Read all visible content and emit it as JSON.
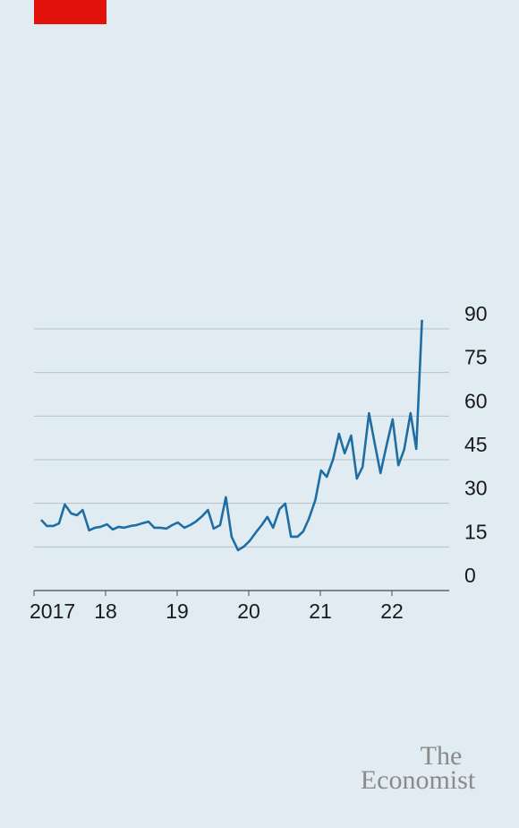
{
  "chart_data": {
    "type": "line",
    "x": [
      2017.1,
      2017.18,
      2017.27,
      2017.35,
      2017.43,
      2017.52,
      2017.6,
      2017.68,
      2017.77,
      2017.85,
      2017.93,
      2018.02,
      2018.1,
      2018.18,
      2018.26,
      2018.35,
      2018.43,
      2018.51,
      2018.6,
      2018.68,
      2018.76,
      2018.85,
      2018.93,
      2019.01,
      2019.1,
      2019.18,
      2019.26,
      2019.35,
      2019.43,
      2019.51,
      2019.6,
      2019.68,
      2019.76,
      2019.85,
      2019.93,
      2020.01,
      2020.1,
      2020.18,
      2020.26,
      2020.34,
      2020.43,
      2020.51,
      2020.59,
      2020.68,
      2020.76,
      2020.84,
      2020.93,
      2021.01,
      2021.09,
      2021.18,
      2021.26,
      2021.34,
      2021.43,
      2021.51,
      2021.59,
      2021.68,
      2021.76,
      2021.84,
      2021.93,
      2022.01,
      2022.09,
      2022.17,
      2022.26,
      2022.34,
      2022.42
    ],
    "series": [
      {
        "color": "#1f6ea3",
        "values": [
          24.3,
          22.2,
          22.2,
          23.1,
          29.6,
          26.5,
          25.9,
          27.7,
          20.7,
          21.6,
          21.9,
          22.8,
          21.0,
          21.9,
          21.6,
          22.2,
          22.5,
          23.1,
          23.7,
          21.6,
          21.6,
          21.3,
          22.5,
          23.4,
          21.6,
          22.5,
          23.7,
          25.6,
          27.7,
          21.3,
          22.5,
          32.1,
          18.5,
          13.9,
          15.1,
          17.0,
          20.0,
          22.5,
          25.3,
          21.6,
          28.0,
          29.9,
          18.5,
          18.5,
          20.3,
          24.7,
          31.1,
          41.3,
          39.1,
          45.3,
          53.9,
          47.2,
          53.3,
          38.5,
          42.5,
          61.0,
          50.5,
          40.4,
          50.5,
          58.9,
          43.1,
          48.4,
          61.0,
          48.7,
          93.1
        ]
      }
    ],
    "xlim": [
      2017,
      2022.8
    ],
    "xticks": [
      2017,
      {
        "value": 2018,
        "label": "18"
      },
      {
        "value": 2019,
        "label": "19"
      },
      {
        "value": 2020,
        "label": "20"
      },
      {
        "value": 2021,
        "label": "21"
      },
      {
        "value": 2022,
        "label": "22"
      }
    ],
    "ylim": [
      0,
      90
    ],
    "yticks": [
      0,
      15,
      30,
      45,
      60,
      75,
      90
    ],
    "grid": true
  },
  "logo": [
    "The",
    "Economist"
  ]
}
